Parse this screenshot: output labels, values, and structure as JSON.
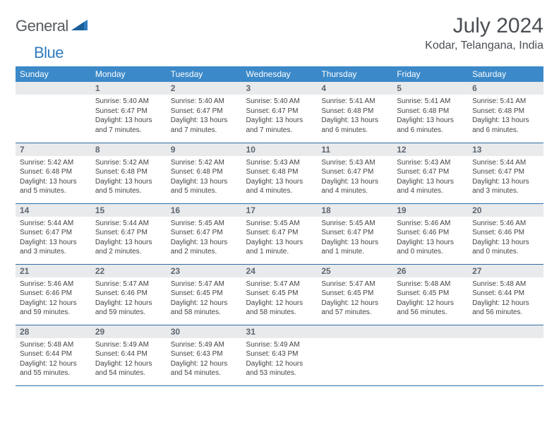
{
  "brand": {
    "part1": "General",
    "part2": "Blue"
  },
  "title": "July 2024",
  "location": "Kodar, Telangana, India",
  "colors": {
    "header_bg": "#3b89c9",
    "row_border": "#2f6fa8",
    "daynum_bg": "#e9eaec",
    "logo_gray": "#555b61",
    "logo_blue": "#2f7bbf"
  },
  "weekdays": [
    "Sunday",
    "Monday",
    "Tuesday",
    "Wednesday",
    "Thursday",
    "Friday",
    "Saturday"
  ],
  "weeks": [
    [
      null,
      {
        "n": "1",
        "sr": "5:40 AM",
        "ss": "6:47 PM",
        "dl": "Daylight: 13 hours and 7 minutes."
      },
      {
        "n": "2",
        "sr": "5:40 AM",
        "ss": "6:47 PM",
        "dl": "Daylight: 13 hours and 7 minutes."
      },
      {
        "n": "3",
        "sr": "5:40 AM",
        "ss": "6:47 PM",
        "dl": "Daylight: 13 hours and 7 minutes."
      },
      {
        "n": "4",
        "sr": "5:41 AM",
        "ss": "6:48 PM",
        "dl": "Daylight: 13 hours and 6 minutes."
      },
      {
        "n": "5",
        "sr": "5:41 AM",
        "ss": "6:48 PM",
        "dl": "Daylight: 13 hours and 6 minutes."
      },
      {
        "n": "6",
        "sr": "5:41 AM",
        "ss": "6:48 PM",
        "dl": "Daylight: 13 hours and 6 minutes."
      }
    ],
    [
      {
        "n": "7",
        "sr": "5:42 AM",
        "ss": "6:48 PM",
        "dl": "Daylight: 13 hours and 5 minutes."
      },
      {
        "n": "8",
        "sr": "5:42 AM",
        "ss": "6:48 PM",
        "dl": "Daylight: 13 hours and 5 minutes."
      },
      {
        "n": "9",
        "sr": "5:42 AM",
        "ss": "6:48 PM",
        "dl": "Daylight: 13 hours and 5 minutes."
      },
      {
        "n": "10",
        "sr": "5:43 AM",
        "ss": "6:48 PM",
        "dl": "Daylight: 13 hours and 4 minutes."
      },
      {
        "n": "11",
        "sr": "5:43 AM",
        "ss": "6:47 PM",
        "dl": "Daylight: 13 hours and 4 minutes."
      },
      {
        "n": "12",
        "sr": "5:43 AM",
        "ss": "6:47 PM",
        "dl": "Daylight: 13 hours and 4 minutes."
      },
      {
        "n": "13",
        "sr": "5:44 AM",
        "ss": "6:47 PM",
        "dl": "Daylight: 13 hours and 3 minutes."
      }
    ],
    [
      {
        "n": "14",
        "sr": "5:44 AM",
        "ss": "6:47 PM",
        "dl": "Daylight: 13 hours and 3 minutes."
      },
      {
        "n": "15",
        "sr": "5:44 AM",
        "ss": "6:47 PM",
        "dl": "Daylight: 13 hours and 2 minutes."
      },
      {
        "n": "16",
        "sr": "5:45 AM",
        "ss": "6:47 PM",
        "dl": "Daylight: 13 hours and 2 minutes."
      },
      {
        "n": "17",
        "sr": "5:45 AM",
        "ss": "6:47 PM",
        "dl": "Daylight: 13 hours and 1 minute."
      },
      {
        "n": "18",
        "sr": "5:45 AM",
        "ss": "6:47 PM",
        "dl": "Daylight: 13 hours and 1 minute."
      },
      {
        "n": "19",
        "sr": "5:46 AM",
        "ss": "6:46 PM",
        "dl": "Daylight: 13 hours and 0 minutes."
      },
      {
        "n": "20",
        "sr": "5:46 AM",
        "ss": "6:46 PM",
        "dl": "Daylight: 13 hours and 0 minutes."
      }
    ],
    [
      {
        "n": "21",
        "sr": "5:46 AM",
        "ss": "6:46 PM",
        "dl": "Daylight: 12 hours and 59 minutes."
      },
      {
        "n": "22",
        "sr": "5:47 AM",
        "ss": "6:46 PM",
        "dl": "Daylight: 12 hours and 59 minutes."
      },
      {
        "n": "23",
        "sr": "5:47 AM",
        "ss": "6:45 PM",
        "dl": "Daylight: 12 hours and 58 minutes."
      },
      {
        "n": "24",
        "sr": "5:47 AM",
        "ss": "6:45 PM",
        "dl": "Daylight: 12 hours and 58 minutes."
      },
      {
        "n": "25",
        "sr": "5:47 AM",
        "ss": "6:45 PM",
        "dl": "Daylight: 12 hours and 57 minutes."
      },
      {
        "n": "26",
        "sr": "5:48 AM",
        "ss": "6:45 PM",
        "dl": "Daylight: 12 hours and 56 minutes."
      },
      {
        "n": "27",
        "sr": "5:48 AM",
        "ss": "6:44 PM",
        "dl": "Daylight: 12 hours and 56 minutes."
      }
    ],
    [
      {
        "n": "28",
        "sr": "5:48 AM",
        "ss": "6:44 PM",
        "dl": "Daylight: 12 hours and 55 minutes."
      },
      {
        "n": "29",
        "sr": "5:49 AM",
        "ss": "6:44 PM",
        "dl": "Daylight: 12 hours and 54 minutes."
      },
      {
        "n": "30",
        "sr": "5:49 AM",
        "ss": "6:43 PM",
        "dl": "Daylight: 12 hours and 54 minutes."
      },
      {
        "n": "31",
        "sr": "5:49 AM",
        "ss": "6:43 PM",
        "dl": "Daylight: 12 hours and 53 minutes."
      },
      null,
      null,
      null
    ]
  ],
  "labels": {
    "sunrise": "Sunrise: ",
    "sunset": "Sunset: "
  }
}
